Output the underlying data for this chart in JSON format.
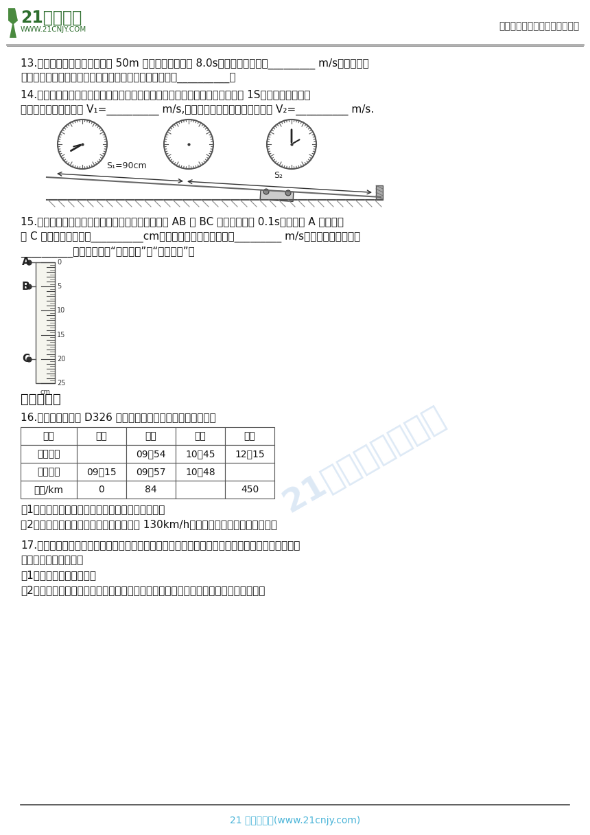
{
  "bg_color": "#ffffff",
  "header_line_color": "#888888",
  "footer_line_color": "#333333",
  "logo_text": "21世纪教育",
  "logo_url": "WWW.21CNJY.COM",
  "header_right": "中小学教育资源及组卷应用平台",
  "footer_text": "21 世纪教育网(www.21cnjy.com)",
  "watermark_text": "21教育网精选资料",
  "section3_title": "三、计算题",
  "q13": "13.在学校运动会中，小明参加 50m 短跑的竞赛成绩是 8.0s，他的平均速度是_________ m/s；在接力比",
  "q13b": "赛中，为使交接棒顺利进行，交接棒时两运动员尽可能做__________。",
  "q14": "14.两个同学做测平均速度的实验，某次实验的过程如图所示，图中秒表每格为 1S，该次实验中，小",
  "q14b": "车通过全程的平均速度 V₁=__________ m/s,小车通过上半段路程的平均速度 V₂=__________ m/s.",
  "q15": "15.图所示是一个水滴下落过程的示意图，水滴通过 AB 和 BC 所用时间均为 0.1s，水滴由 A 位置下落",
  "q15b": "到 C 位置运动的距离是__________cm，则水滴下落的平均速度是_________ m/s。该水滴下落过程是",
  "q15c": "__________运动。（选填“匀速直线”或“变速直线”）",
  "q16_intro": "16.从广州到厦门的 D326 次列车组列车运行时刻表如下所示。",
  "table_headers": [
    "时间",
    "广州",
    "惠州",
    "潮阳",
    "厦门"
  ],
  "table_row1": [
    "到站时间",
    "",
    "09：54",
    "10：45",
    "12：15"
  ],
  "table_row2": [
    "发车时间",
    "09：15",
    "09：57",
    "10：48",
    ""
  ],
  "table_row3": [
    "里程/km",
    "0",
    "84",
    "",
    "450"
  ],
  "q16_1": "（1）列车由广州驶往厦门全程的平均速度为多少？",
  "q16_2": "（2）若该列车从惠州到潮阳的平均速度为 130km/h，则广州到潮阳的里程为多少？",
  "q17_intro": "17.小明同学从桂城乘车去南国桃园游玩，所乘车的速度计如图甲所示，他也看见路边一个交通标志",
  "q17_intro2": "牌，如图乙所示，则：",
  "q17_1": "（1）该车的速度是多少？",
  "q17_2": "（2）该车以速度计上的平均速度行驶，从交通标志牌处到南国桃园至少需要多少小时？"
}
